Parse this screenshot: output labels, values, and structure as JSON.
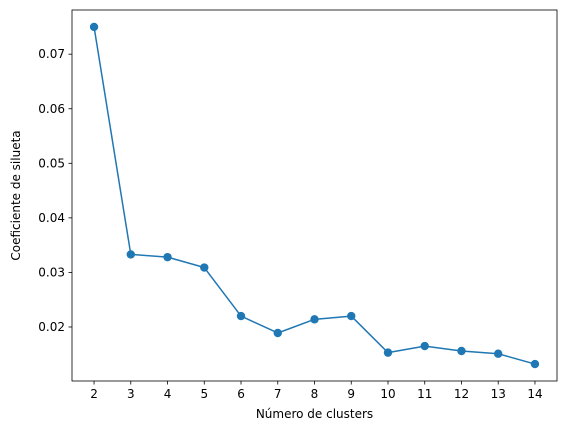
{
  "chart_data": {
    "type": "line",
    "title": "",
    "xlabel": "Número de clusters",
    "ylabel": "Coeficiente de silueta",
    "x": [
      2,
      3,
      4,
      5,
      6,
      7,
      8,
      9,
      10,
      11,
      12,
      13,
      14
    ],
    "series": [
      {
        "values": [
          0.075,
          0.0333,
          0.0328,
          0.0309,
          0.022,
          0.0189,
          0.0214,
          0.022,
          0.0153,
          0.0165,
          0.0156,
          0.0151,
          0.0132
        ],
        "color": "#1f77b4",
        "marker": "circle"
      }
    ],
    "xticks": [
      "2",
      "3",
      "4",
      "5",
      "6",
      "7",
      "8",
      "9",
      "10",
      "11",
      "12",
      "13",
      "14"
    ],
    "yticks": [
      {
        "value": 0.02,
        "label": "0.02"
      },
      {
        "value": 0.03,
        "label": "0.03"
      },
      {
        "value": 0.04,
        "label": "0.04"
      },
      {
        "value": 0.05,
        "label": "0.05"
      },
      {
        "value": 0.06,
        "label": "0.06"
      },
      {
        "value": 0.07,
        "label": "0.07"
      }
    ],
    "xlim": [
      1.4,
      14.6
    ],
    "ylim": [
      0.0101,
      0.0781
    ],
    "grid": false,
    "legend": false
  }
}
